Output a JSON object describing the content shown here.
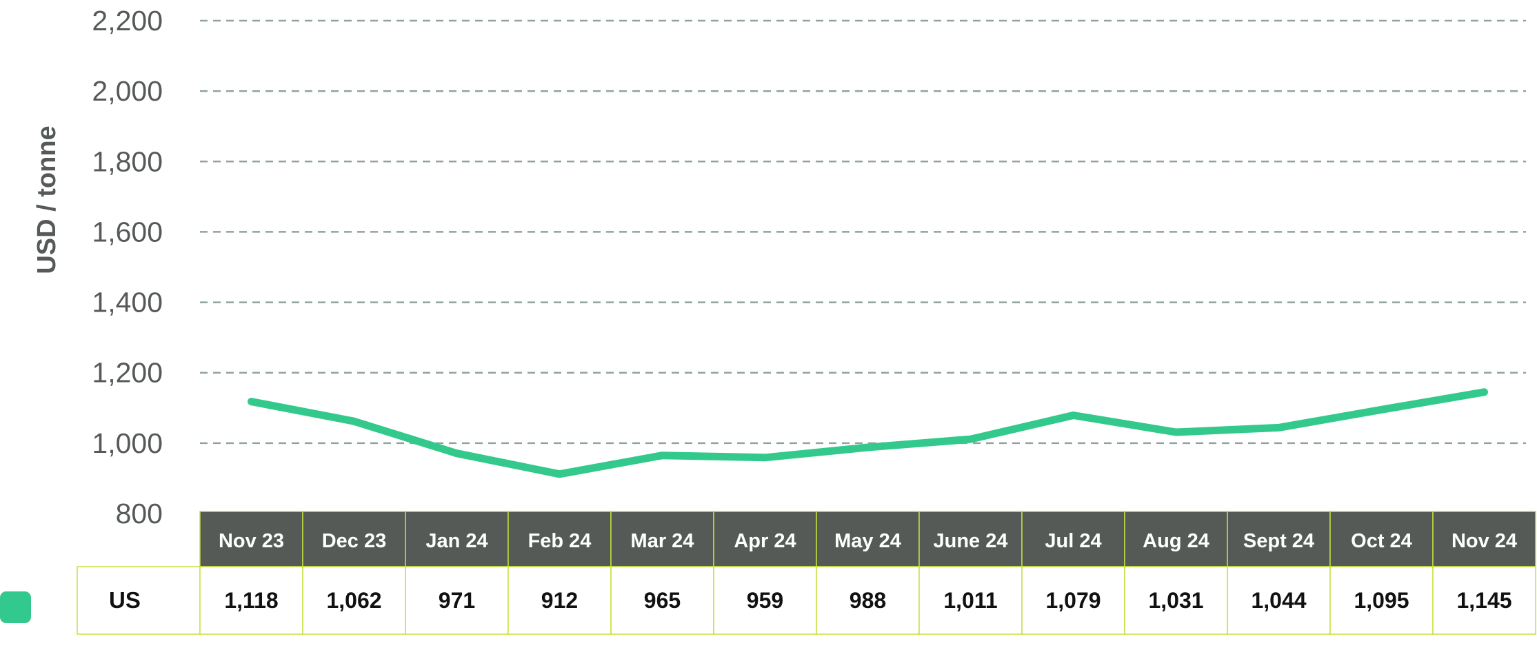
{
  "chart_data": {
    "type": "line",
    "title": "",
    "xlabel": "",
    "ylabel": "USD / tonne",
    "ylim": [
      800,
      2200
    ],
    "yticks": [
      800,
      1000,
      1200,
      1400,
      1600,
      1800,
      2000,
      2200
    ],
    "ytick_labels": [
      "800",
      "1,000",
      "1,200",
      "1,400",
      "1,600",
      "1,800",
      "2,000",
      "2,200"
    ],
    "grid": true,
    "grid_style": "dashed",
    "categories": [
      "Nov 23",
      "Dec 23",
      "Jan 24",
      "Feb 24",
      "Mar 24",
      "Apr 24",
      "May 24",
      "June 24",
      "Jul 24",
      "Aug 24",
      "Sept 24",
      "Oct 24",
      "Nov 24"
    ],
    "series": [
      {
        "name": "US",
        "color": "#33c98c",
        "values": [
          1118,
          1062,
          971,
          912,
          965,
          959,
          988,
          1011,
          1079,
          1031,
          1044,
          1095,
          1145
        ],
        "value_labels": [
          "1,118",
          "1,062",
          "971",
          "912",
          "965",
          "959",
          "988",
          "1,011",
          "1,079",
          "1,031",
          "1,044",
          "1,095",
          "1,145"
        ]
      }
    ],
    "data_table": true,
    "legend": "left of data table"
  },
  "colors": {
    "line": "#33c98c",
    "header_bg": "#555a56",
    "table_border": "#c5e03c",
    "grid": "#8fa39f",
    "axis_text": "#555a56"
  }
}
